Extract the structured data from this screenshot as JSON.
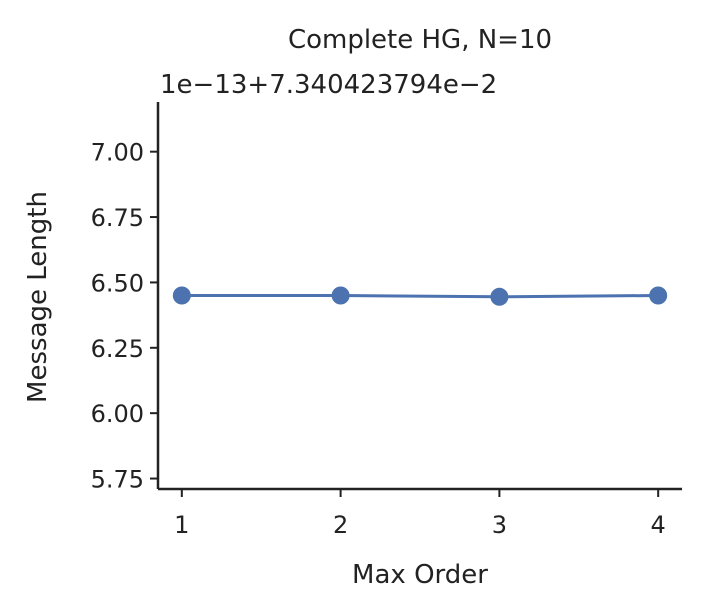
{
  "chart_data": {
    "type": "line",
    "title": "Complete HG, N=10",
    "offset_label": "1e−13+7.340423794e−2",
    "xlabel": "Max Order",
    "ylabel": "Message Length",
    "categories": [
      "1",
      "2",
      "3",
      "4"
    ],
    "x": [
      1,
      2,
      3,
      4
    ],
    "series": [
      {
        "values": [
          6.45,
          6.45,
          6.445,
          6.45
        ],
        "color": "#4c72b0"
      }
    ],
    "xlim": [
      0.85,
      4.15
    ],
    "ylim": [
      5.71,
      7.19
    ],
    "yticks": [
      5.75,
      6.0,
      6.25,
      6.5,
      6.75,
      7.0
    ],
    "ytick_labels": [
      "5.75",
      "6.00",
      "6.25",
      "6.50",
      "6.75",
      "7.00"
    ],
    "grid": false,
    "legend": "none"
  }
}
